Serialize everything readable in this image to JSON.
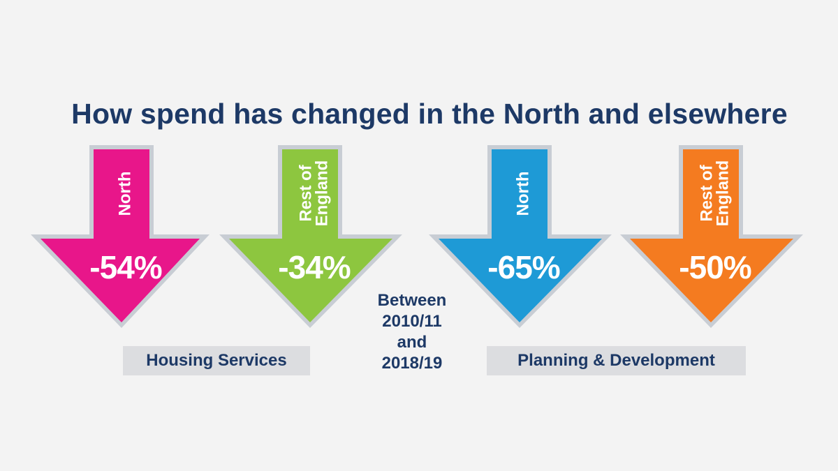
{
  "title": "How spend has changed in the North and elsewhere",
  "period_text": [
    "Between",
    "2010/11",
    "and",
    "2018/19"
  ],
  "chart_data": {
    "type": "bar",
    "title": "How spend has changed in the North and elsewhere",
    "unit": "% change in spend, 2010/11 to 2018/19",
    "groups": [
      {
        "name": "Housing Services",
        "items": [
          {
            "region": "North",
            "value": -54,
            "value_label": "-54%",
            "color": "#e8168a"
          },
          {
            "region": "Rest of England",
            "value": -34,
            "value_label": "-34%",
            "color": "#8dc63f"
          }
        ]
      },
      {
        "name": "Planning & Development",
        "items": [
          {
            "region": "North",
            "value": -65,
            "value_label": "-65%",
            "color": "#1e9ad6"
          },
          {
            "region": "Rest of England",
            "value": -50,
            "value_label": "-50%",
            "color": "#f47b20"
          }
        ]
      }
    ]
  }
}
